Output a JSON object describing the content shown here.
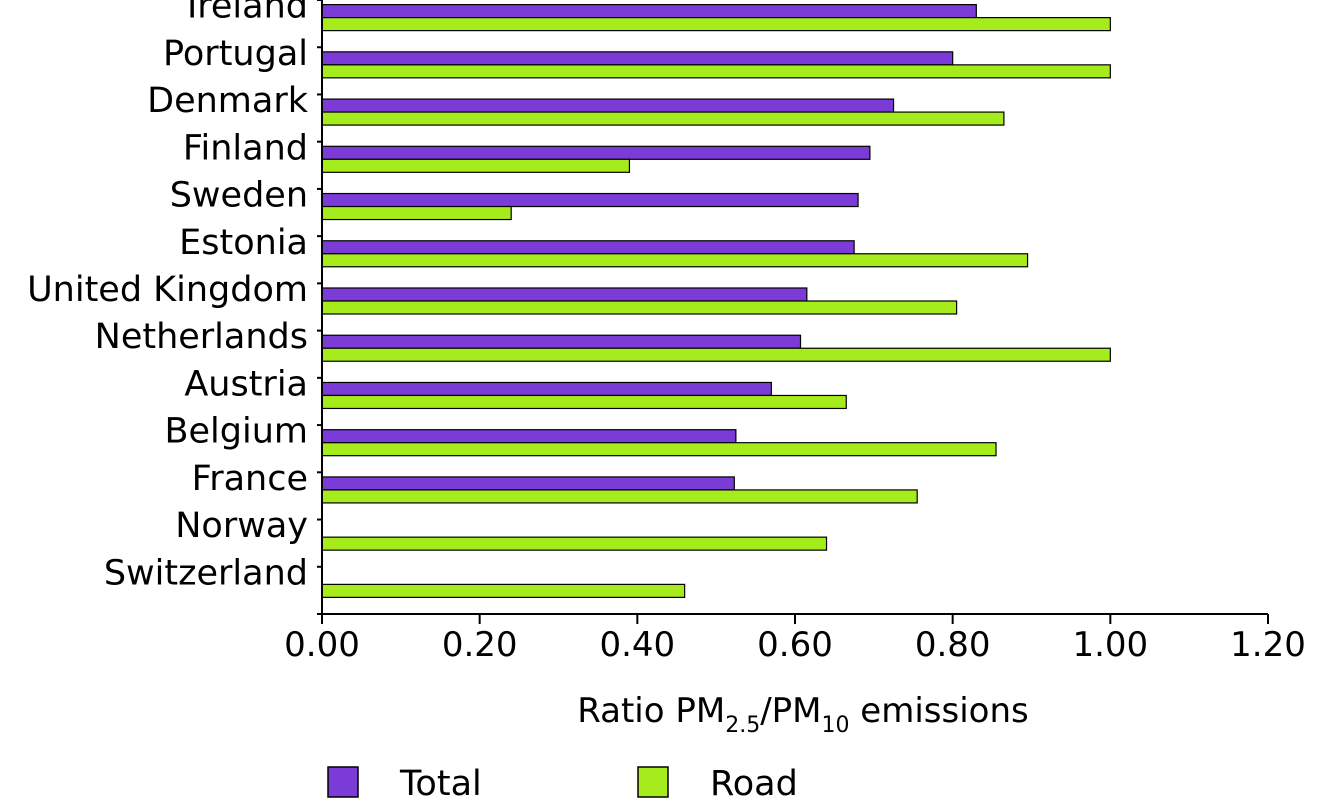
{
  "chart_data": {
    "type": "bar",
    "orientation": "horizontal",
    "categories": [
      "Ireland",
      "Portugal",
      "Denmark",
      "Finland",
      "Sweden",
      "Estonia",
      "United Kingdom",
      "Netherlands",
      "Austria",
      "Belgium",
      "France",
      "Norway",
      "Switzerland"
    ],
    "series": [
      {
        "name": "Total",
        "color": "#7b3bd6",
        "values": [
          0.83,
          0.8,
          0.725,
          0.695,
          0.68,
          0.675,
          0.615,
          0.607,
          0.57,
          0.525,
          0.523,
          null,
          null
        ]
      },
      {
        "name": "Road",
        "color": "#a6ec1c",
        "values": [
          1.0,
          1.0,
          0.865,
          0.39,
          0.24,
          0.895,
          0.805,
          1.0,
          0.665,
          0.855,
          0.755,
          0.64,
          0.46
        ]
      }
    ],
    "xlabel_parts": {
      "main": "Ratio PM",
      "sub1": "2.5",
      "mid": "/PM",
      "sub2": "10",
      "tail": " emissions"
    },
    "xlim": [
      0,
      1.2
    ],
    "xticks": [
      "0.00",
      "0.20",
      "0.40",
      "0.60",
      "0.80",
      "1.00",
      "1.20"
    ],
    "grid": false,
    "legend_position": "bottom"
  }
}
